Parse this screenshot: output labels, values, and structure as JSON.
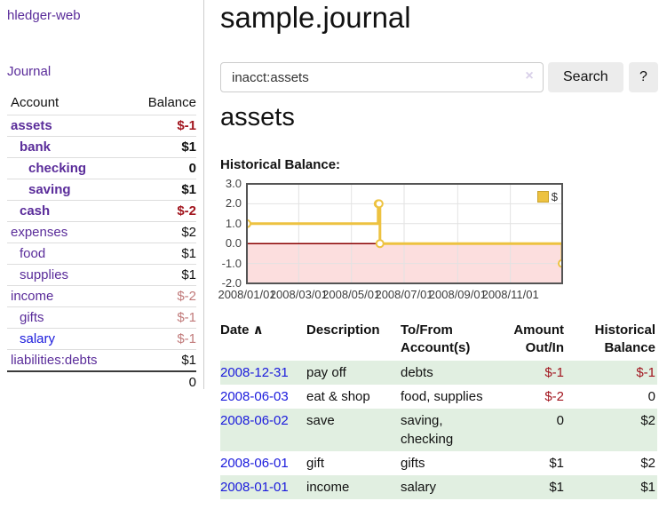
{
  "app": {
    "brand": "hledger-web"
  },
  "colors": {
    "purple": "#5a2c9a",
    "blue": "#1a1adc",
    "neg_strong": "#a2161f",
    "neg_muted": "#c17a7a",
    "row_green": "#e1efe1",
    "button_bg": "#ececec",
    "gold": "#edc240"
  },
  "sidebar": {
    "journal_link": "Journal",
    "accounts": {
      "headers": {
        "account": "Account",
        "balance": "Balance"
      },
      "rows": [
        {
          "name": "assets",
          "depth": 1,
          "bold": true,
          "color": "purple",
          "balance": "$-1",
          "balance_style": "neg-strong"
        },
        {
          "name": "bank",
          "depth": 2,
          "bold": true,
          "color": "purple",
          "balance": "$1",
          "balance_style": "pos"
        },
        {
          "name": "checking",
          "depth": 3,
          "bold": true,
          "color": "purple",
          "balance": "0",
          "balance_style": "pos"
        },
        {
          "name": "saving",
          "depth": 3,
          "bold": true,
          "color": "purple",
          "balance": "$1",
          "balance_style": "pos"
        },
        {
          "name": "cash",
          "depth": 2,
          "bold": true,
          "color": "purple",
          "balance": "$-2",
          "balance_style": "neg-strong"
        },
        {
          "name": "expenses",
          "depth": 1,
          "bold": false,
          "color": "purple",
          "balance": "$2",
          "balance_style": "pos"
        },
        {
          "name": "food",
          "depth": 2,
          "bold": false,
          "color": "purple",
          "balance": "$1",
          "balance_style": "pos"
        },
        {
          "name": "supplies",
          "depth": 2,
          "bold": false,
          "color": "purple",
          "balance": "$1",
          "balance_style": "pos"
        },
        {
          "name": "income",
          "depth": 1,
          "bold": false,
          "color": "purple",
          "balance": "$-2",
          "balance_style": "neg-muted"
        },
        {
          "name": "gifts",
          "depth": 2,
          "bold": false,
          "color": "purple",
          "balance": "$-1",
          "balance_style": "neg-muted"
        },
        {
          "name": "salary",
          "depth": 2,
          "bold": false,
          "color": "blue",
          "balance": "$-1",
          "balance_style": "neg-muted"
        },
        {
          "name": "liabilities:debts",
          "depth": 1,
          "bold": false,
          "color": "purple",
          "balance": "$1",
          "balance_style": "pos"
        }
      ],
      "total": "0"
    }
  },
  "main": {
    "title": "sample.journal",
    "search": {
      "value": "inacct:assets",
      "clear_icon": "×",
      "button": "Search",
      "help_button": "?"
    },
    "account_heading": "assets",
    "chart_heading": "Historical Balance:"
  },
  "chart_data": {
    "type": "line",
    "title": "Historical Balance",
    "step": true,
    "x_range": [
      "2008-01-01",
      "2008-12-31"
    ],
    "ylim": [
      -2,
      3
    ],
    "grid": true,
    "grid_color": "#e2e2e2",
    "border_color": "#545454",
    "zero_line_color": "#8b0000",
    "negative_fill": "#fcdede",
    "legend": {
      "position": "top-right",
      "label": "$"
    },
    "y_ticks": [
      {
        "value": 3,
        "label": "3.0"
      },
      {
        "value": 2,
        "label": "2.0"
      },
      {
        "value": 1,
        "label": "1.0"
      },
      {
        "value": 0,
        "label": "0.0"
      },
      {
        "value": -1,
        "label": "-1.0"
      },
      {
        "value": -2,
        "label": "-2.0"
      }
    ],
    "x_ticks": [
      {
        "date": "2008-01-01",
        "label": "2008/01/01"
      },
      {
        "date": "2008-03-01",
        "label": "2008/03/01"
      },
      {
        "date": "2008-05-01",
        "label": "2008/05/01"
      },
      {
        "date": "2008-07-01",
        "label": "2008/07/01"
      },
      {
        "date": "2008-09-01",
        "label": "2008/09/01"
      },
      {
        "date": "2008-11-01",
        "label": "2008/11/01"
      }
    ],
    "series": [
      {
        "name": "$",
        "color": "#edc240",
        "points": [
          {
            "date": "2008-01-01",
            "value": 1
          },
          {
            "date": "2008-06-01",
            "value": 2
          },
          {
            "date": "2008-06-02",
            "value": 2
          },
          {
            "date": "2008-06-03",
            "value": 0
          },
          {
            "date": "2008-12-31",
            "value": -1
          }
        ]
      }
    ]
  },
  "register": {
    "headers": [
      {
        "key": "date",
        "l1": "Date",
        "sort": "∧"
      },
      {
        "key": "description",
        "l1": "Description"
      },
      {
        "key": "accounts",
        "l1": "To/From",
        "l2": "Account(s)"
      },
      {
        "key": "amount",
        "l1": "Amount",
        "l2": "Out/In",
        "align": "right"
      },
      {
        "key": "balance",
        "l1": "Historical",
        "l2": "Balance",
        "align": "right"
      }
    ],
    "rows": [
      {
        "date": "2008-12-31",
        "description": "pay off",
        "accounts": "debts",
        "amount": "$-1",
        "amount_neg": true,
        "balance": "$-1",
        "balance_neg": true
      },
      {
        "date": "2008-06-03",
        "description": "eat & shop",
        "accounts": "food, supplies",
        "amount": "$-2",
        "amount_neg": true,
        "balance": "0",
        "balance_neg": false
      },
      {
        "date": "2008-06-02",
        "description": "save",
        "accounts": "saving, checking",
        "amount": "0",
        "amount_neg": false,
        "balance": "$2",
        "balance_neg": false
      },
      {
        "date": "2008-06-01",
        "description": "gift",
        "accounts": "gifts",
        "amount": "$1",
        "amount_neg": false,
        "balance": "$2",
        "balance_neg": false
      },
      {
        "date": "2008-01-01",
        "description": "income",
        "accounts": "salary",
        "amount": "$1",
        "amount_neg": false,
        "balance": "$1",
        "balance_neg": false
      }
    ]
  }
}
